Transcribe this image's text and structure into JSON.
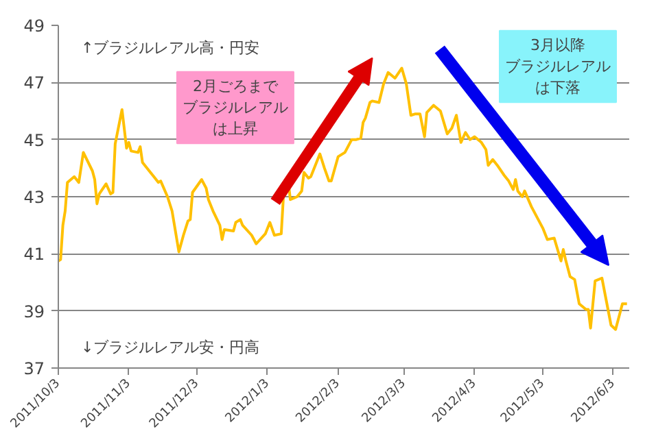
{
  "chart_data": {
    "type": "line",
    "grid": "y",
    "marker": "none",
    "line_style": "solid",
    "annotations": [
      "↑ブラジルレアル高・円安",
      "↓ブラジルレアル安・円高",
      "2月ごろまでブラジルレアルは上昇",
      "3月以降ブラジルレアルは下落"
    ],
    "xlim": [
      "2011-10-03",
      "2012-06-10"
    ],
    "xticks": [
      {
        "value": "2011-10-03",
        "label": "2011/10/3"
      },
      {
        "value": "2011-11-03",
        "label": "2011/11/3"
      },
      {
        "value": "2011-12-03",
        "label": "2011/12/3"
      },
      {
        "value": "2012-01-03",
        "label": "2012/1/3"
      },
      {
        "value": "2012-02-03",
        "label": "2012/2/3"
      },
      {
        "value": "2012-03-03",
        "label": "2012/3/3"
      },
      {
        "value": "2012-04-03",
        "label": "2012/4/3"
      },
      {
        "value": "2012-05-03",
        "label": "2012/5/3"
      },
      {
        "value": "2012-06-03",
        "label": "2012/6/3"
      }
    ],
    "ylim": [
      37,
      49
    ],
    "yticks": [
      37,
      39,
      41,
      43,
      45,
      47,
      49
    ],
    "series": [
      {
        "color": "#ffc000",
        "x": [
          "2011-10-03",
          "2011-10-04",
          "2011-10-05",
          "2011-10-06",
          "2011-10-07",
          "2011-10-10",
          "2011-10-12",
          "2011-10-14",
          "2011-10-18",
          "2011-10-19",
          "2011-10-20",
          "2011-10-21",
          "2011-10-24",
          "2011-10-26",
          "2011-10-27",
          "2011-10-28",
          "2011-10-31",
          "2011-11-02",
          "2011-11-03",
          "2011-11-04",
          "2011-11-07",
          "2011-11-08",
          "2011-11-09",
          "2011-11-12",
          "2011-11-14",
          "2011-11-16",
          "2011-11-17",
          "2011-11-20",
          "2011-11-22",
          "2011-11-25",
          "2011-11-27",
          "2011-11-29",
          "2011-11-30",
          "2011-12-01",
          "2011-12-05",
          "2011-12-07",
          "2011-12-08",
          "2011-12-10",
          "2011-12-13",
          "2011-12-14",
          "2011-12-15",
          "2011-12-19",
          "2011-12-20",
          "2011-12-22",
          "2011-12-23",
          "2011-12-27",
          "2011-12-29",
          "2012-01-02",
          "2012-01-04",
          "2012-01-06",
          "2012-01-09",
          "2012-01-10",
          "2012-01-11",
          "2012-01-12",
          "2012-01-13",
          "2012-01-16",
          "2012-01-18",
          "2012-01-19",
          "2012-01-21",
          "2012-01-22",
          "2012-01-26",
          "2012-01-28",
          "2012-01-30",
          "2012-01-31",
          "2012-02-03",
          "2012-02-06",
          "2012-02-09",
          "2012-02-11",
          "2012-02-13",
          "2012-02-14",
          "2012-02-15",
          "2012-02-17",
          "2012-02-18",
          "2012-02-21",
          "2012-02-23",
          "2012-02-25",
          "2012-02-28",
          "2012-03-02",
          "2012-03-04",
          "2012-03-06",
          "2012-03-08",
          "2012-03-10",
          "2012-03-12",
          "2012-03-13",
          "2012-03-16",
          "2012-03-19",
          "2012-03-22",
          "2012-03-24",
          "2012-03-26",
          "2012-03-28",
          "2012-03-30",
          "2012-04-01",
          "2012-04-03",
          "2012-04-06",
          "2012-04-08",
          "2012-04-09",
          "2012-04-11",
          "2012-04-13",
          "2012-04-16",
          "2012-04-18",
          "2012-04-20",
          "2012-04-21",
          "2012-04-22",
          "2012-04-24",
          "2012-04-25",
          "2012-04-28",
          "2012-05-01",
          "2012-05-03",
          "2012-05-05",
          "2012-05-08",
          "2012-05-11",
          "2012-05-12",
          "2012-05-13",
          "2012-05-15",
          "2012-05-17",
          "2012-05-19",
          "2012-05-22",
          "2012-05-23",
          "2012-05-24",
          "2012-05-26",
          "2012-05-29",
          "2012-06-02",
          "2012-06-04",
          "2012-06-07",
          "2012-06-09"
        ],
        "values": [
          40.75,
          40.8,
          42.0,
          42.5,
          43.5,
          43.7,
          43.5,
          44.55,
          43.9,
          43.6,
          42.75,
          43.1,
          43.45,
          43.1,
          43.15,
          44.85,
          46.05,
          44.7,
          44.9,
          44.6,
          44.55,
          44.75,
          44.2,
          43.9,
          43.7,
          43.5,
          43.55,
          43.0,
          42.5,
          41.07,
          41.65,
          42.15,
          42.2,
          43.15,
          43.6,
          43.3,
          42.9,
          42.5,
          42.0,
          41.5,
          41.85,
          41.8,
          42.1,
          42.2,
          42.0,
          41.65,
          41.35,
          41.7,
          42.1,
          41.65,
          41.7,
          43.05,
          43.1,
          43.6,
          42.9,
          43.0,
          43.2,
          43.85,
          43.65,
          43.7,
          44.5,
          44.0,
          43.55,
          43.55,
          44.4,
          44.55,
          45.0,
          45.0,
          45.05,
          45.6,
          45.75,
          46.3,
          46.35,
          46.3,
          46.95,
          47.35,
          47.15,
          47.5,
          46.95,
          45.85,
          45.9,
          45.9,
          45.1,
          45.95,
          46.2,
          46.0,
          45.2,
          45.4,
          45.85,
          44.9,
          45.25,
          45.0,
          45.1,
          44.9,
          44.65,
          44.1,
          44.3,
          44.1,
          43.75,
          43.55,
          43.25,
          43.6,
          43.2,
          43.0,
          43.2,
          42.65,
          42.2,
          41.9,
          41.5,
          41.55,
          40.75,
          41.15,
          40.8,
          40.2,
          40.1,
          39.25,
          39.05,
          39.05,
          38.4,
          40.05,
          40.15,
          38.5,
          38.35,
          39.25,
          39.25
        ]
      }
    ]
  }
}
